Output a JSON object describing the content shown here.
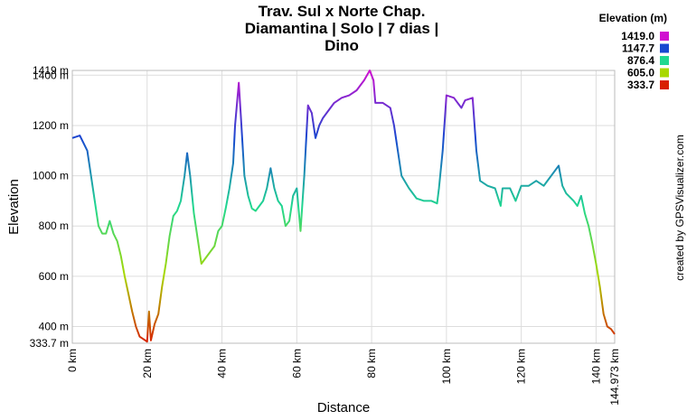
{
  "chart_data": {
    "type": "line",
    "title_lines": [
      "Trav. Sul x Norte Chap.",
      "Diamantina | Solo | 7 dias |",
      "Dino"
    ],
    "x_label": "Distance",
    "y_label": "Elevation",
    "legend_title": "Elevation (m)",
    "legend": [
      {
        "value": 1419,
        "label": "1419.0",
        "color": "#d010d0"
      },
      {
        "value": 1147.7,
        "label": "1147.7",
        "color": "#1848d0"
      },
      {
        "value": 876.4,
        "label": "876.4",
        "color": "#20d890"
      },
      {
        "value": 605,
        "label": "605.0",
        "color": "#a8d800"
      },
      {
        "value": 333.7,
        "label": "333.7",
        "color": "#d82000"
      }
    ],
    "credit": "created by GPSVisualizer.com",
    "grid": true,
    "xlim": [
      0,
      144.973
    ],
    "ylim": [
      333.7,
      1419
    ],
    "xticks": [
      {
        "value": 0,
        "label": "0 km"
      },
      {
        "value": 20,
        "label": "20 km"
      },
      {
        "value": 40,
        "label": "40 km"
      },
      {
        "value": 60,
        "label": "60 km"
      },
      {
        "value": 80,
        "label": "80 km"
      },
      {
        "value": 100,
        "label": "100 km"
      },
      {
        "value": 120,
        "label": "120 km"
      },
      {
        "value": 140,
        "label": "140 km"
      },
      {
        "value": 144.973,
        "label": "144.973 km"
      }
    ],
    "yticks": [
      {
        "value": 333.7,
        "label": "333.7 m"
      },
      {
        "value": 400,
        "label": "400 m"
      },
      {
        "value": 600,
        "label": "600 m"
      },
      {
        "value": 800,
        "label": "800 m"
      },
      {
        "value": 1000,
        "label": "1000 m"
      },
      {
        "value": 1200,
        "label": "1200 m"
      },
      {
        "value": 1400,
        "label": "1400 m"
      },
      {
        "value": 1419,
        "label": "1419 m"
      }
    ],
    "x": [
      0,
      2,
      4,
      5,
      6,
      7,
      8,
      9,
      10,
      11,
      12,
      13,
      14,
      15,
      16,
      17,
      18,
      19,
      20,
      20.5,
      21,
      22,
      23,
      24,
      25,
      26,
      27,
      28,
      29,
      30,
      30.7,
      31.5,
      32.5,
      33.5,
      34.5,
      36,
      38,
      39,
      40,
      41,
      42,
      43,
      43.5,
      44.5,
      45,
      46,
      47,
      48,
      49,
      50,
      51,
      52,
      53,
      54,
      55,
      56,
      57,
      58,
      59,
      60,
      61,
      62,
      63,
      64,
      65,
      66,
      67,
      68,
      70,
      72,
      74,
      76,
      78,
      79.5,
      80.5,
      81,
      83,
      85,
      86,
      87,
      88,
      90,
      92,
      94,
      96,
      97.5,
      98,
      99,
      100,
      102,
      104,
      105,
      107,
      108,
      109,
      111,
      113,
      114.5,
      115,
      117,
      118.5,
      120,
      122,
      124,
      126,
      128,
      130,
      131,
      132,
      134,
      135,
      136,
      137,
      138,
      139,
      140,
      141,
      142,
      143,
      144,
      144.973
    ],
    "series": [
      {
        "name": "Elevation",
        "values": [
          1150,
          1160,
          1100,
          1000,
          900,
          800,
          770,
          770,
          820,
          770,
          740,
          680,
          600,
          530,
          460,
          400,
          360,
          350,
          340,
          460,
          345,
          410,
          450,
          560,
          650,
          760,
          840,
          860,
          900,
          1000,
          1090,
          1000,
          850,
          750,
          650,
          680,
          720,
          780,
          800,
          870,
          950,
          1050,
          1200,
          1370,
          1250,
          1000,
          920,
          870,
          860,
          880,
          900,
          950,
          1030,
          950,
          900,
          880,
          800,
          820,
          920,
          950,
          780,
          1000,
          1280,
          1250,
          1150,
          1200,
          1230,
          1250,
          1290,
          1310,
          1320,
          1340,
          1380,
          1419,
          1380,
          1290,
          1290,
          1270,
          1200,
          1100,
          1000,
          950,
          910,
          900,
          900,
          890,
          950,
          1100,
          1320,
          1310,
          1270,
          1300,
          1310,
          1100,
          980,
          960,
          950,
          880,
          950,
          950,
          900,
          960,
          960,
          980,
          960,
          1000,
          1040,
          960,
          930,
          900,
          880,
          920,
          850,
          800,
          730,
          650,
          560,
          450,
          400,
          390,
          370
        ]
      }
    ]
  }
}
